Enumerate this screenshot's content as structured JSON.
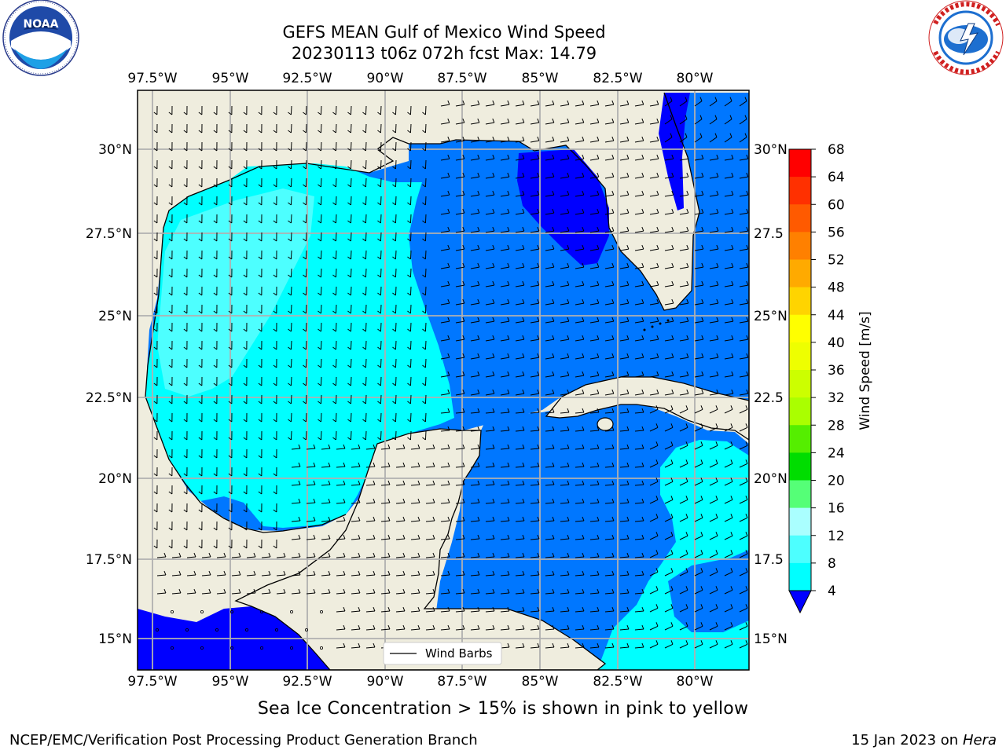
{
  "header": {
    "title_line1": "GEFS MEAN Gulf of Mexico Wind Speed",
    "title_line2": "20230113 t06z 072h fcst   Max: 14.79"
  },
  "logos": {
    "left": {
      "name": "noaa-logo",
      "text": "NOAA",
      "ring_text": "NATIONAL OCEANIC AND ATMOSPHERIC ADMINISTRATION · U.S. DEPARTMENT OF COMMERCE"
    },
    "right": {
      "name": "nws-logo",
      "ring_text": "NATIONAL WEATHER SERVICE"
    }
  },
  "map": {
    "lon_labels": [
      "97.5°W",
      "95°W",
      "92.5°W",
      "90°W",
      "87.5°W",
      "85°W",
      "82.5°W",
      "80°W"
    ],
    "lat_labels_left": [
      "30°N",
      "27.5°N",
      "25°N",
      "22.5°N",
      "20°N",
      "17.5°N",
      "15°N"
    ],
    "lat_labels_right": [
      "30°N",
      "27.5",
      "25°N",
      "22.5",
      "20°N",
      "17.5",
      "15°N"
    ],
    "legend_label": "Wind Barbs",
    "colors": {
      "land": "#efedde",
      "water_4_8": "#0077ff",
      "water_8_12": "#00ffff",
      "water_0_4": "#0000ff",
      "water_12_16": "#4dffff",
      "grid": "#b0b0b0"
    }
  },
  "colorbar": {
    "label": "Wind Speed [m/s]",
    "ticks": [
      "68",
      "64",
      "60",
      "56",
      "52",
      "48",
      "44",
      "40",
      "36",
      "32",
      "28",
      "24",
      "20",
      "16",
      "12",
      "8",
      "4"
    ],
    "colors": [
      "#ff0000",
      "#ff3000",
      "#ff5a00",
      "#ff8000",
      "#ffaa00",
      "#ffd400",
      "#ffff00",
      "#eeff00",
      "#ccff00",
      "#aaff00",
      "#55ee00",
      "#00dd00",
      "#55ff77",
      "#aaffff",
      "#4dffff",
      "#00ffff",
      "#0077ff"
    ],
    "under_color": "#0000ff"
  },
  "caption": "Sea Ice Concentration > 15% is shown in pink to yellow",
  "footer": {
    "left": "NCEP/EMC/Verification Post Processing Product Generation Branch",
    "right_prefix": "15 Jan 2023 on ",
    "right_host": "Hera"
  }
}
